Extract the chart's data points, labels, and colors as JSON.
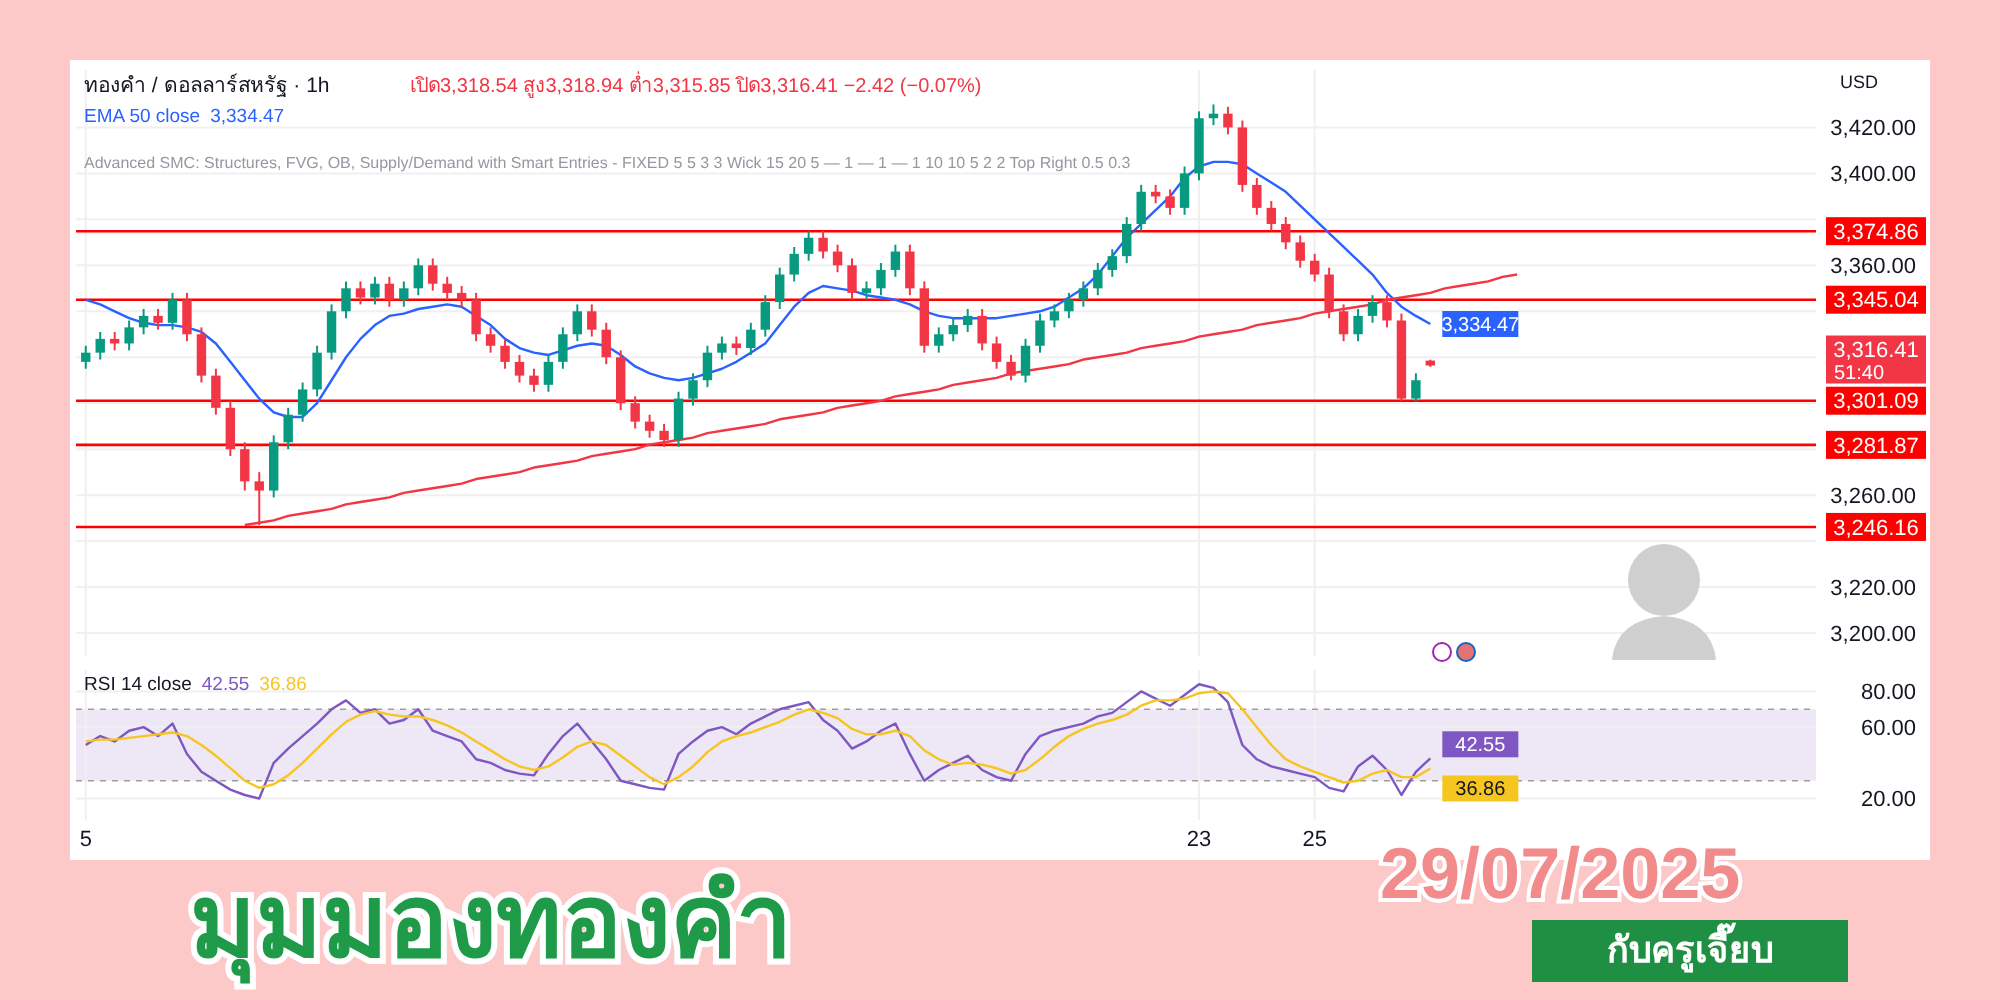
{
  "chart_data": [
    {
      "type": "candlestick",
      "title": "มุมมองทองคำ",
      "subtitle": "29/07/2025",
      "categories": [
        "5",
        null,
        null,
        null,
        null,
        null,
        null,
        null,
        null,
        null,
        null,
        null,
        null,
        null,
        null,
        null,
        null,
        null,
        null,
        null,
        null,
        null,
        null,
        null,
        null,
        null,
        null,
        null,
        null,
        null,
        null,
        null,
        null,
        null,
        null,
        null,
        null,
        null,
        null,
        null,
        null,
        null,
        null,
        null,
        null,
        null,
        null,
        null,
        null,
        null,
        null,
        null,
        null,
        null,
        null,
        null,
        null,
        null,
        null,
        null,
        null,
        null,
        null,
        null,
        null,
        null,
        null,
        null,
        null,
        null,
        null,
        null,
        null,
        null,
        null,
        null,
        null,
        "23",
        null,
        null,
        null,
        null,
        null,
        null,
        null,
        "25",
        null,
        null,
        null,
        null,
        null,
        null,
        null,
        null,
        null,
        null,
        null,
        null,
        null,
        null,
        null,
        null,
        null,
        null,
        null,
        null,
        null,
        null,
        null,
        null,
        null,
        null,
        null,
        null,
        null,
        null,
        null,
        null,
        null,
        null
      ],
      "ohlc": [
        [
          3318,
          3325,
          3315,
          3322
        ],
        [
          3322,
          3331,
          3319,
          3328
        ],
        [
          3328,
          3331,
          3323,
          3326
        ],
        [
          3326,
          3336,
          3323,
          3333
        ],
        [
          3333,
          3341,
          3330,
          3338
        ],
        [
          3338,
          3341,
          3332,
          3335
        ],
        [
          3335,
          3348,
          3332,
          3345
        ],
        [
          3345,
          3348,
          3327,
          3330
        ],
        [
          3330,
          3333,
          3309,
          3312
        ],
        [
          3312,
          3315,
          3295,
          3298
        ],
        [
          3298,
          3301,
          3277,
          3280
        ],
        [
          3280,
          3283,
          3262,
          3266
        ],
        [
          3266,
          3270,
          3247,
          3262
        ],
        [
          3262,
          3286,
          3259,
          3283
        ],
        [
          3283,
          3298,
          3280,
          3295
        ],
        [
          3295,
          3309,
          3292,
          3306
        ],
        [
          3306,
          3325,
          3303,
          3322
        ],
        [
          3322,
          3343,
          3319,
          3340
        ],
        [
          3340,
          3353,
          3337,
          3350
        ],
        [
          3350,
          3353,
          3343,
          3346
        ],
        [
          3346,
          3355,
          3343,
          3352
        ],
        [
          3352,
          3355,
          3342,
          3345
        ],
        [
          3345,
          3353,
          3342,
          3350
        ],
        [
          3350,
          3363,
          3347,
          3360
        ],
        [
          3360,
          3363,
          3349,
          3352
        ],
        [
          3352,
          3355,
          3345,
          3348
        ],
        [
          3348,
          3351,
          3342,
          3345
        ],
        [
          3345,
          3348,
          3327,
          3330
        ],
        [
          3330,
          3333,
          3322,
          3325
        ],
        [
          3325,
          3328,
          3315,
          3318
        ],
        [
          3318,
          3321,
          3309,
          3312
        ],
        [
          3312,
          3315,
          3305,
          3308
        ],
        [
          3308,
          3321,
          3305,
          3318
        ],
        [
          3318,
          3333,
          3315,
          3330
        ],
        [
          3330,
          3343,
          3327,
          3340
        ],
        [
          3340,
          3343,
          3329,
          3332
        ],
        [
          3332,
          3335,
          3317,
          3320
        ],
        [
          3320,
          3323,
          3297,
          3300
        ],
        [
          3300,
          3303,
          3289,
          3292
        ],
        [
          3292,
          3295,
          3285,
          3288
        ],
        [
          3288,
          3291,
          3281,
          3284
        ],
        [
          3284,
          3305,
          3281,
          3302
        ],
        [
          3302,
          3313,
          3299,
          3310
        ],
        [
          3310,
          3325,
          3307,
          3322
        ],
        [
          3322,
          3329,
          3319,
          3326
        ],
        [
          3326,
          3329,
          3321,
          3324
        ],
        [
          3324,
          3335,
          3321,
          3332
        ],
        [
          3332,
          3347,
          3329,
          3344
        ],
        [
          3344,
          3359,
          3341,
          3356
        ],
        [
          3356,
          3368,
          3353,
          3365
        ],
        [
          3365,
          3375,
          3362,
          3372
        ],
        [
          3372,
          3375,
          3363,
          3366
        ],
        [
          3366,
          3369,
          3357,
          3360
        ],
        [
          3360,
          3363,
          3345,
          3348
        ],
        [
          3348,
          3353,
          3345,
          3350
        ],
        [
          3350,
          3361,
          3347,
          3358
        ],
        [
          3358,
          3369,
          3355,
          3366
        ],
        [
          3366,
          3369,
          3347,
          3350
        ],
        [
          3350,
          3353,
          3322,
          3325
        ],
        [
          3325,
          3333,
          3322,
          3330
        ],
        [
          3330,
          3337,
          3327,
          3334
        ],
        [
          3334,
          3341,
          3331,
          3338
        ],
        [
          3338,
          3341,
          3323,
          3326
        ],
        [
          3326,
          3329,
          3315,
          3318
        ],
        [
          3318,
          3321,
          3310,
          3312
        ],
        [
          3312,
          3328,
          3309,
          3325
        ],
        [
          3325,
          3339,
          3322,
          3336
        ],
        [
          3336,
          3343,
          3333,
          3340
        ],
        [
          3340,
          3348,
          3337,
          3345
        ],
        [
          3345,
          3353,
          3342,
          3350
        ],
        [
          3350,
          3361,
          3347,
          3358
        ],
        [
          3358,
          3367,
          3355,
          3364
        ],
        [
          3364,
          3381,
          3361,
          3378
        ],
        [
          3378,
          3395,
          3375,
          3392
        ],
        [
          3392,
          3395,
          3387,
          3390
        ],
        [
          3390,
          3393,
          3382,
          3385
        ],
        [
          3385,
          3403,
          3382,
          3400
        ],
        [
          3400,
          3427,
          3397,
          3424
        ],
        [
          3424,
          3430,
          3421,
          3426
        ],
        [
          3426,
          3429,
          3417,
          3420
        ],
        [
          3420,
          3423,
          3392,
          3395
        ],
        [
          3395,
          3398,
          3382,
          3385
        ],
        [
          3385,
          3388,
          3375,
          3378
        ],
        [
          3378,
          3381,
          3367,
          3370
        ],
        [
          3370,
          3373,
          3359,
          3362
        ],
        [
          3362,
          3365,
          3353,
          3356
        ],
        [
          3356,
          3359,
          3337,
          3340
        ],
        [
          3340,
          3343,
          3327,
          3330
        ],
        [
          3330,
          3341,
          3327,
          3338
        ],
        [
          3338,
          3347,
          3335,
          3344
        ],
        [
          3344,
          3347,
          3333,
          3336
        ],
        [
          3336,
          3339,
          3301,
          3302
        ],
        [
          3302,
          3313,
          3301,
          3310
        ],
        [
          3318.54,
          3318.94,
          3315.85,
          3316.41
        ],
        null,
        null,
        null,
        null,
        null,
        null,
        null,
        null,
        null,
        null,
        null,
        null,
        null,
        null,
        null,
        null,
        null,
        null,
        null,
        null,
        null,
        null,
        null,
        null,
        null,
        null
      ],
      "series": [
        {
          "name": "EMA 50 close",
          "type": "line",
          "color": "#2962ff",
          "values": [
            3345,
            3343,
            3340,
            3337,
            3335,
            3334,
            3334,
            3333,
            3331,
            3326,
            3318,
            3310,
            3302,
            3296,
            3294,
            3294,
            3300,
            3310,
            3320,
            3328,
            3334,
            3338,
            3339,
            3341,
            3342,
            3343,
            3342,
            3338,
            3334,
            3328,
            3324,
            3322,
            3321,
            3323,
            3325,
            3326,
            3325,
            3321,
            3316,
            3313,
            3311,
            3310,
            3311,
            3313,
            3315,
            3318,
            3322,
            3326,
            3334,
            3342,
            3348,
            3351,
            3350,
            3349,
            3347,
            3346,
            3345,
            3343,
            3340,
            3338,
            3337,
            3337,
            3337,
            3337,
            3338,
            3339,
            3340,
            3342,
            3346,
            3350,
            3356,
            3364,
            3372,
            3378,
            3384,
            3390,
            3398,
            3403,
            3405,
            3405,
            3404,
            3400,
            3396,
            3392,
            3386,
            3380,
            3374,
            3368,
            3362,
            3356,
            3348,
            3342,
            3338,
            3334.47,
            null,
            null,
            null,
            null,
            null,
            null,
            null,
            null,
            null,
            null,
            null,
            null,
            null,
            null,
            null,
            null,
            null,
            null,
            null,
            null,
            null,
            null,
            null,
            null,
            null,
            null
          ],
          "value_labels": [
            null,
            null,
            null,
            null,
            null,
            null,
            null,
            null,
            null,
            null,
            null,
            null,
            null,
            null,
            null,
            null,
            null,
            null,
            null,
            null,
            null,
            null,
            null,
            null,
            null,
            null,
            null,
            null,
            null,
            null,
            null,
            null,
            null,
            null,
            null,
            null,
            null,
            null,
            null,
            null,
            null,
            null,
            null,
            null,
            null,
            null,
            null,
            null,
            null,
            null,
            null,
            null,
            null,
            null,
            null,
            null,
            null,
            null,
            null,
            null,
            null,
            null,
            null,
            null,
            null,
            null,
            null,
            null,
            null,
            null,
            null,
            null,
            null,
            null,
            null,
            null,
            null,
            null,
            null,
            null,
            null,
            null,
            null,
            null,
            null,
            null,
            null,
            null,
            null,
            null,
            null,
            null,
            null,
            "3,334.47",
            null,
            null,
            null,
            null,
            null,
            null,
            null,
            null,
            null,
            null,
            null,
            null,
            null,
            null,
            null,
            null,
            null,
            null,
            null,
            null,
            null,
            null,
            null,
            null,
            null,
            null
          ]
        },
        {
          "type": "line",
          "color": "#f23645",
          "values": [
            null,
            null,
            null,
            null,
            null,
            null,
            null,
            null,
            null,
            null,
            null,
            3247,
            3248,
            3249,
            3251,
            3252,
            3253,
            3254,
            3256,
            3257,
            3258,
            3259,
            3261,
            3262,
            3263,
            3264,
            3265,
            3267,
            3268,
            3269,
            3270,
            3272,
            3273,
            3274,
            3275,
            3277,
            3278,
            3279,
            3280,
            3282,
            3283,
            3284,
            3285,
            3287,
            3288,
            3289,
            3290,
            3291,
            3293,
            3294,
            3295,
            3296,
            3298,
            3299,
            3300,
            3301,
            3303,
            3304,
            3305,
            3306,
            3308,
            3309,
            3310,
            3311,
            3313,
            3314,
            3315,
            3316,
            3317,
            3319,
            3320,
            3321,
            3322,
            3324,
            3325,
            3326,
            3327,
            3329,
            3330,
            3331,
            3332,
            3334,
            3335,
            3336,
            3337,
            3339,
            3340,
            3341,
            3342,
            3343,
            3345,
            3346,
            3347,
            3348,
            3350,
            3351,
            3352,
            3353,
            3355,
            3356,
            null,
            null,
            null,
            null,
            null,
            null,
            null,
            null,
            null,
            null,
            null,
            null,
            null,
            null,
            null,
            null,
            null,
            null,
            null,
            null
          ]
        }
      ],
      "ylim": [
        3190,
        3445
      ],
      "yticks": [
        {
          "value": 3200,
          "label": "3,200.00"
        },
        {
          "value": 3220,
          "label": "3,220.00"
        },
        {
          "value": 3240,
          "label": null
        },
        {
          "value": 3260,
          "label": "3,260.00"
        },
        {
          "value": 3280,
          "label": null
        },
        {
          "value": 3300,
          "label": null
        },
        {
          "value": 3320,
          "label": null
        },
        {
          "value": 3340,
          "label": null
        },
        {
          "value": 3360,
          "label": "3,360.00"
        },
        {
          "value": 3380,
          "label": null
        },
        {
          "value": 3400,
          "label": "3,400.00"
        },
        {
          "value": 3420,
          "label": "3,420.00"
        }
      ],
      "grid": true,
      "legend": "top left",
      "tick_labels": "y",
      "ref_lines": [
        {
          "axis": "y",
          "value": 3374.86,
          "label": "3,374.86",
          "color": "#ff0000"
        },
        {
          "axis": "y",
          "value": 3345.04,
          "label": "3,345.04",
          "color": "#ff0000"
        },
        {
          "axis": "y",
          "value": 3301.09,
          "label": "3,301.09",
          "color": "#ff0000"
        },
        {
          "axis": "y",
          "value": 3281.87,
          "label": "3,281.87",
          "color": "#ff0000"
        },
        {
          "axis": "y",
          "value": 3246.16,
          "label": "3,246.16",
          "color": "#ff0000"
        }
      ],
      "annotations": [
        "ทองคำ / ดอลลาร์สหรัฐ · 1h",
        "เปิด3,318.54 สูง3,318.94 ต่ำ3,315.85 ปิด3,316.41 −2.42 (−0.07%)",
        "Advanced SMC: Structures, FVG, OB, Supply/Demand with Smart Entries - FIXED 5 5 3 3 Wick 15 20 5 — 1 — 1 — 1 10 10 5 2 2 Top Right 0.5 0.3",
        "USD",
        "3,316.41",
        "51:40",
        "กับครูเจี๊ยบ"
      ]
    },
    {
      "type": "line",
      "title": "RSI 14 close",
      "categories": [
        "5",
        null,
        null,
        null,
        null,
        null,
        null,
        null,
        null,
        null,
        null,
        null,
        null,
        null,
        null,
        null,
        null,
        null,
        null,
        null,
        null,
        null,
        null,
        null,
        null,
        null,
        null,
        null,
        null,
        null,
        null,
        null,
        null,
        null,
        null,
        null,
        null,
        null,
        null,
        null,
        null,
        null,
        null,
        null,
        null,
        null,
        null,
        null,
        null,
        null,
        null,
        null,
        null,
        null,
        null,
        null,
        null,
        null,
        null,
        null,
        null,
        null,
        null,
        null,
        null,
        null,
        null,
        null,
        null,
        null,
        null,
        null,
        null,
        null,
        null,
        null,
        null,
        "23",
        null,
        null,
        null,
        null,
        null,
        null,
        null,
        "25",
        null,
        null,
        null,
        null,
        null,
        null,
        null,
        null,
        null,
        null,
        null,
        null,
        null,
        null,
        null,
        null,
        null,
        null,
        null,
        null,
        null,
        null,
        null,
        null,
        null,
        null,
        null,
        null,
        null,
        null,
        null,
        null,
        null,
        null
      ],
      "series": [
        {
          "color": "#7e57c2",
          "values": [
            50,
            55,
            52,
            58,
            60,
            55,
            62,
            45,
            35,
            30,
            25,
            22,
            20,
            40,
            48,
            55,
            62,
            70,
            75,
            68,
            70,
            62,
            64,
            70,
            58,
            55,
            52,
            42,
            40,
            36,
            34,
            33,
            45,
            55,
            62,
            52,
            42,
            30,
            28,
            26,
            25,
            45,
            52,
            58,
            60,
            56,
            62,
            66,
            70,
            72,
            74,
            64,
            58,
            48,
            52,
            58,
            62,
            45,
            30,
            36,
            40,
            44,
            36,
            32,
            30,
            45,
            55,
            58,
            60,
            62,
            66,
            68,
            74,
            80,
            76,
            72,
            78,
            84,
            82,
            74,
            50,
            42,
            38,
            36,
            34,
            32,
            26,
            24,
            38,
            44,
            36,
            22,
            35,
            42.55,
            null,
            null,
            null,
            null,
            null,
            null,
            null,
            null,
            null,
            null,
            null,
            null,
            null,
            null,
            null,
            null,
            null,
            null,
            null,
            null,
            null,
            null,
            null,
            null,
            null,
            null
          ],
          "value_labels": [
            null,
            null,
            null,
            null,
            null,
            null,
            null,
            null,
            null,
            null,
            null,
            null,
            null,
            null,
            null,
            null,
            null,
            null,
            null,
            null,
            null,
            null,
            null,
            null,
            null,
            null,
            null,
            null,
            null,
            null,
            null,
            null,
            null,
            null,
            null,
            null,
            null,
            null,
            null,
            null,
            null,
            null,
            null,
            null,
            null,
            null,
            null,
            null,
            null,
            null,
            null,
            null,
            null,
            null,
            null,
            null,
            null,
            null,
            null,
            null,
            null,
            null,
            null,
            null,
            null,
            null,
            null,
            null,
            null,
            null,
            null,
            null,
            null,
            null,
            null,
            null,
            null,
            null,
            null,
            null,
            null,
            null,
            null,
            null,
            null,
            null,
            null,
            null,
            null,
            null,
            null,
            null,
            null,
            "42.55",
            null,
            null,
            null,
            null,
            null,
            null,
            null,
            null,
            null,
            null,
            null,
            null,
            null,
            null,
            null,
            null,
            null,
            null,
            null,
            null,
            null,
            null,
            null,
            null,
            null,
            null
          ]
        },
        {
          "color": "#f7c520",
          "values": [
            52,
            53,
            53,
            54,
            55,
            56,
            57,
            55,
            50,
            44,
            37,
            30,
            26,
            28,
            33,
            40,
            48,
            56,
            63,
            67,
            69,
            67,
            66,
            66,
            64,
            61,
            57,
            52,
            47,
            42,
            38,
            36,
            38,
            43,
            49,
            52,
            50,
            44,
            38,
            32,
            28,
            32,
            38,
            46,
            52,
            55,
            57,
            60,
            63,
            67,
            70,
            68,
            65,
            59,
            56,
            56,
            58,
            55,
            47,
            42,
            39,
            40,
            39,
            37,
            34,
            36,
            42,
            49,
            55,
            59,
            62,
            64,
            67,
            72,
            75,
            75,
            76,
            79,
            80,
            79,
            70,
            60,
            50,
            42,
            38,
            35,
            32,
            29,
            30,
            34,
            36,
            32,
            32,
            36.86,
            null,
            null,
            null,
            null,
            null,
            null,
            null,
            null,
            null,
            null,
            null,
            null,
            null,
            null,
            null,
            null,
            null,
            null,
            null,
            null,
            null,
            null,
            null,
            null,
            null,
            null
          ],
          "value_labels": [
            null,
            null,
            null,
            null,
            null,
            null,
            null,
            null,
            null,
            null,
            null,
            null,
            null,
            null,
            null,
            null,
            null,
            null,
            null,
            null,
            null,
            null,
            null,
            null,
            null,
            null,
            null,
            null,
            null,
            null,
            null,
            null,
            null,
            null,
            null,
            null,
            null,
            null,
            null,
            null,
            null,
            null,
            null,
            null,
            null,
            null,
            null,
            null,
            null,
            null,
            null,
            null,
            null,
            null,
            null,
            null,
            null,
            null,
            null,
            null,
            null,
            null,
            null,
            null,
            null,
            null,
            null,
            null,
            null,
            null,
            null,
            null,
            null,
            null,
            null,
            null,
            null,
            null,
            null,
            null,
            null,
            null,
            null,
            null,
            null,
            null,
            null,
            null,
            null,
            null,
            null,
            null,
            null,
            "36.86",
            null,
            null,
            null,
            null,
            null,
            null,
            null,
            null,
            null,
            null,
            null,
            null,
            null,
            null,
            null,
            null,
            null,
            null,
            null,
            null,
            null,
            null,
            null,
            null,
            null,
            null
          ]
        }
      ],
      "ylim": [
        8,
        92
      ],
      "yticks": [
        {
          "value": 20,
          "label": "20.00"
        },
        {
          "value": 60,
          "label": "60.00"
        },
        {
          "value": 80,
          "label": "80.00"
        }
      ],
      "bands": [
        {
          "axis": "y",
          "from": 30,
          "to": 70,
          "color": "#ede7f6"
        }
      ],
      "ref_lines": [
        {
          "axis": "y",
          "value": 70,
          "color": "#9e9e9e",
          "line_style": "dashed"
        },
        {
          "axis": "y",
          "value": 30,
          "color": "#9e9e9e",
          "line_style": "dashed"
        }
      ],
      "grid": true
    }
  ]
}
